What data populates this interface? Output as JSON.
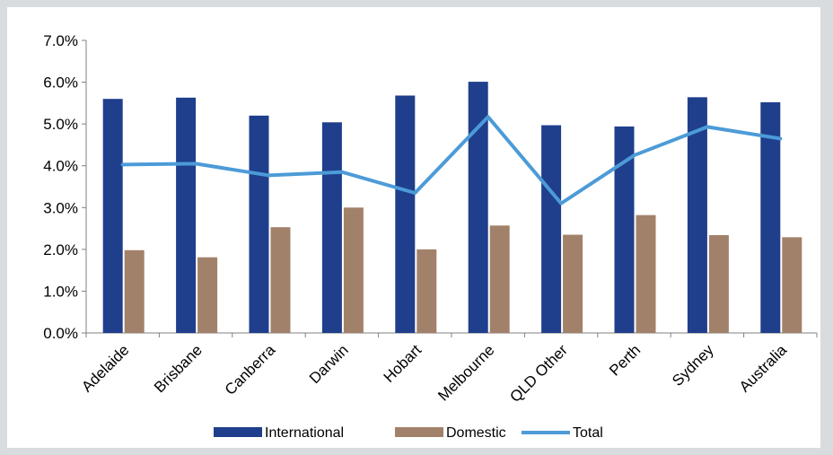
{
  "chart_data": {
    "type": "bar",
    "categories": [
      "Adelaide",
      "Brisbane",
      "Canberra",
      "Darwin",
      "Hobart",
      "Melbourne",
      "QLD Other",
      "Perth",
      "Sydney",
      "Australia"
    ],
    "series": [
      {
        "name": "International",
        "kind": "bar",
        "color": "#1f3f8c",
        "values": [
          5.6,
          5.63,
          5.2,
          5.04,
          5.68,
          6.01,
          4.97,
          4.94,
          5.64,
          5.52
        ]
      },
      {
        "name": "Domestic",
        "kind": "bar",
        "color": "#a2816a",
        "values": [
          1.98,
          1.81,
          2.53,
          3.0,
          2.0,
          2.57,
          2.35,
          2.82,
          2.34,
          2.29
        ]
      },
      {
        "name": "Total",
        "kind": "line",
        "color": "#4c9bd8",
        "values": [
          4.03,
          4.05,
          3.77,
          3.85,
          3.35,
          5.17,
          3.1,
          4.25,
          4.93,
          4.65
        ]
      }
    ],
    "y_ticks": [
      "0.0%",
      "1.0%",
      "2.0%",
      "3.0%",
      "4.0%",
      "5.0%",
      "6.0%",
      "7.0%"
    ],
    "ylim": [
      0,
      7
    ],
    "y_unit": "%",
    "grid": false,
    "legend_position": "bottom",
    "title": "",
    "xlabel": "",
    "ylabel": ""
  }
}
